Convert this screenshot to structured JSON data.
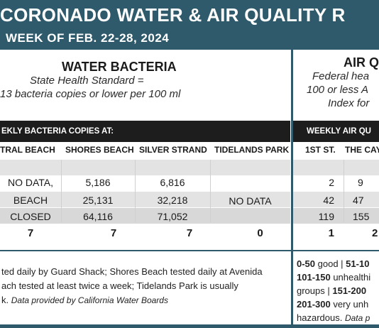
{
  "header": {
    "title": "CORONADO WATER & AIR QUALITY R",
    "subtitle": "WEEK OF FEB. 22-28, 2024"
  },
  "water": {
    "title": "WATER BACTERIA",
    "standard_line1": "State Health Standard  =",
    "standard_line2": "13 bacteria copies or lower per 100 ml",
    "bar_label": "EKLY BACTERIA COPIES AT:",
    "columns": [
      "TRAL BEACH",
      "SHORES BEACH",
      "SILVER STRAND",
      "TIDELANDS PARK"
    ],
    "central_beach": [
      "NO DATA,",
      "BEACH",
      "CLOSED"
    ],
    "shores_beach": [
      "5,186",
      "25,131",
      "64,116"
    ],
    "silver_strand": [
      "6,816",
      "32,218",
      "71,052"
    ],
    "tidelands_park": "NO DATA",
    "totals": [
      "7",
      "7",
      "7",
      "0"
    ],
    "footnote_line1": "ted daily by Guard Shack; Shores Beach tested daily at Avenida",
    "footnote_line2": "ach tested at least twice a week; Tidelands Park is usually",
    "footnote_line3_plain": "k.",
    "footnote_line3_italic": "Data provided by California Water Boards"
  },
  "air": {
    "title": "AIR Q",
    "standard_line1": "Federal hea",
    "standard_line2": "100 or less A",
    "standard_line3": "Index for",
    "bar_label": "WEEKLY AIR QU",
    "columns": [
      "1ST ST.",
      "THE CAY"
    ],
    "first_st": [
      "2",
      "42",
      "119"
    ],
    "the_cay": [
      "9",
      "47",
      "155"
    ],
    "totals": [
      "1",
      "2"
    ],
    "legend_line1_b1": "0-50",
    "legend_line1_t1": " good | ",
    "legend_line1_b2": "51-10",
    "legend_line2_b1": "101-150",
    "legend_line2_t1": " unhealthi",
    "legend_line3_t1": "groups | ",
    "legend_line3_b1": "151-200",
    "legend_line4_b1": "201-300",
    "legend_line4_t1": " very unh",
    "legend_line5_t1": "hazardous. ",
    "legend_line5_i1": "Data p"
  },
  "colors": {
    "header_bg": "#2e5a6b",
    "bar_bg": "#1d1d1d",
    "band_grey": "#e3e3e3"
  }
}
